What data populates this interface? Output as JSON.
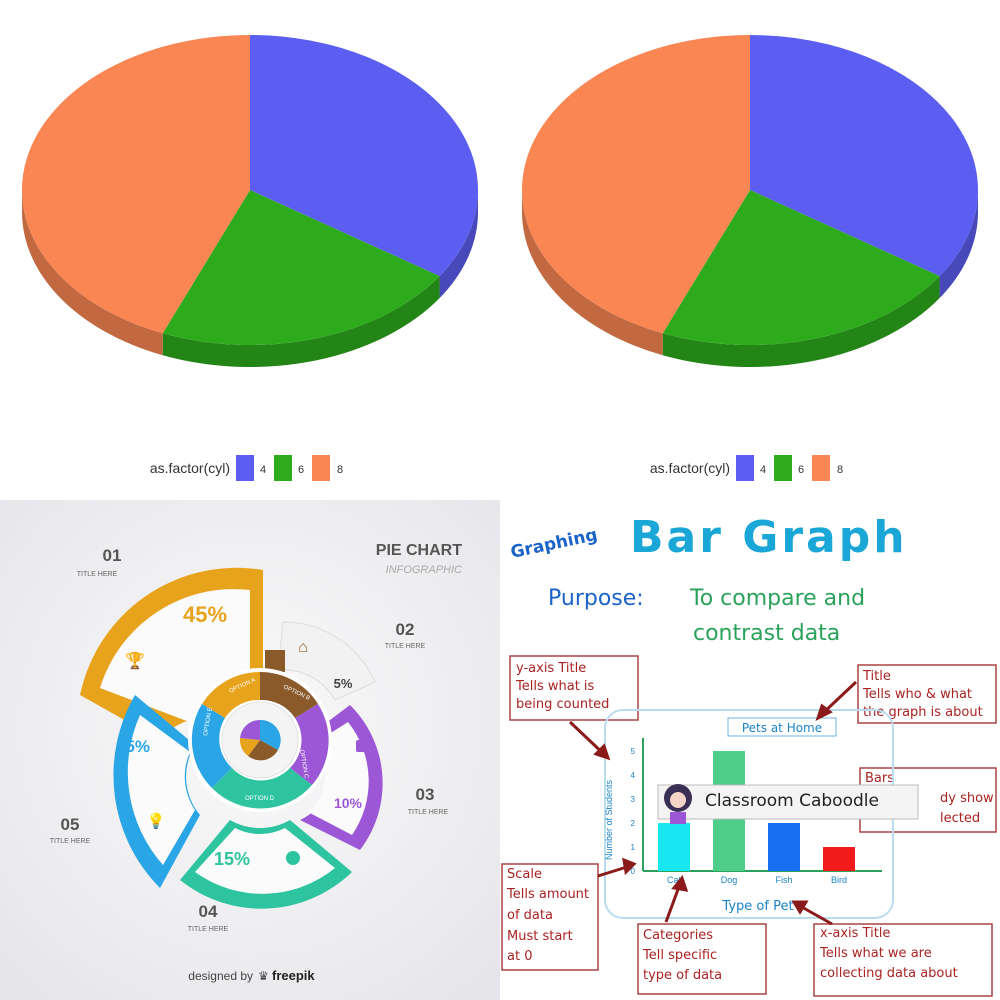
{
  "chart_data": [
    {
      "type": "pie",
      "title": "",
      "legend_title": "as.factor(cyl)",
      "legend_position": "bottom",
      "categories": [
        "4",
        "6",
        "8"
      ],
      "values": [
        11,
        7,
        14
      ],
      "colors": [
        "#5b5ef0",
        "#2eab1d",
        "#f98653"
      ]
    },
    {
      "type": "pie",
      "title": "",
      "legend_title": "as.factor(cyl)",
      "legend_position": "bottom",
      "categories": [
        "4",
        "6",
        "8"
      ],
      "values": [
        11,
        7,
        14
      ],
      "colors": [
        "#5b5ef0",
        "#2eab1d",
        "#f98653"
      ]
    },
    {
      "type": "pie",
      "title": "PIE CHART",
      "subtitle": "INFOGRAPHIC",
      "segments": [
        {
          "number": "01",
          "label": "TITLE HERE",
          "value": 45,
          "display": "45%",
          "option": "OPTION A",
          "color": "#e8a31c"
        },
        {
          "number": "02",
          "label": "TITLE HERE",
          "value": 5,
          "display": "5%",
          "option": "OPTION B",
          "color": "#8b5a2b"
        },
        {
          "number": "03",
          "label": "TITLE HERE",
          "value": 10,
          "display": "10%",
          "option": "OPTION C",
          "color": "#9b57d6"
        },
        {
          "number": "04",
          "label": "TITLE HERE",
          "value": 15,
          "display": "15%",
          "option": "OPTION D",
          "color": "#2ec4a0"
        },
        {
          "number": "05",
          "label": "TITLE HERE",
          "value": 25,
          "display": "25%",
          "option": "OPTION E",
          "color": "#2aa6e6"
        }
      ],
      "credit_prefix": "designed by",
      "credit_brand": "freepik"
    },
    {
      "type": "bar",
      "categories": [
        "Cat",
        "Dog",
        "Fish",
        "Bird"
      ],
      "values": [
        2,
        5,
        2,
        1
      ],
      "colors": [
        "#18e7f2",
        "#4fce8a",
        "#1a6ef2",
        "#f21a1a"
      ],
      "ylim": [
        0,
        5
      ],
      "yticks": [
        "0",
        "1",
        "2",
        "3",
        "4",
        "5"
      ]
    }
  ],
  "panel_bl": {
    "num01": "01",
    "num02": "02",
    "num03": "03",
    "num04": "04",
    "num05": "05",
    "title_here": "TITLE HERE",
    "heading": "PIE CHART",
    "subheading": "INFOGRAPHIC",
    "option_a": "OPTION A",
    "option_b": "OPTION B",
    "option_c": "OPTION C",
    "option_d": "OPTION D",
    "option_e": "OPTION E",
    "credit_prefix": "designed by",
    "credit_brand": "freepik"
  },
  "panel_br": {
    "graphing": "Graphing",
    "title": "Bar Graph",
    "purpose_label": "Purpose:",
    "purpose_line1": "To compare and",
    "purpose_line2": "contrast data",
    "yaxis_box_line1": "y-axis Title",
    "yaxis_box_line2": "Tells what is",
    "yaxis_box_line3": "being counted",
    "title_box_line1": "Title",
    "title_box_line2": "Tells who & what",
    "title_box_line3": "the graph is about",
    "bars_box_line1": "Bars",
    "bars_box_line2": "dy show",
    "bars_box_line3": "lected",
    "chart_title": "Pets at Home",
    "ylabel": "Number of Students",
    "xlabel": "Type of Pet",
    "banner": "Classroom Caboodle",
    "scale_line1": "Scale",
    "scale_line2": "Tells amount",
    "scale_line3": "of data",
    "scale_line4": "Must start",
    "scale_line5": "at 0",
    "categories_line1": "Categories",
    "categories_line2": "Tell specific",
    "categories_line3": "type of data",
    "xaxis_box_line1": "x-axis Title",
    "xaxis_box_line2": "Tells what we are",
    "xaxis_box_line3": "collecting data about"
  }
}
